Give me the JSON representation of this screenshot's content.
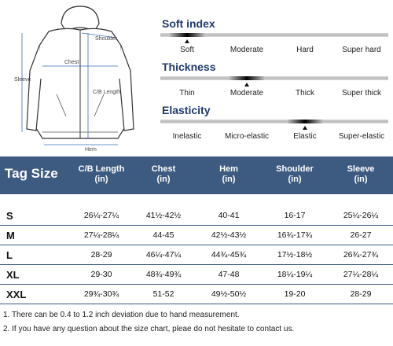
{
  "illustration": {
    "labels": {
      "shoulder": "Shoulder",
      "chest": "Chest",
      "sleeve": "Sleeve",
      "cb_length": "C/B Length",
      "hem": "Hem"
    }
  },
  "indices": [
    {
      "title": "Soft index",
      "options": [
        "Soft",
        "Moderate",
        "Hard",
        "Super hard"
      ],
      "selected": "Soft"
    },
    {
      "title": "Thickness",
      "options": [
        "Thin",
        "Moderate",
        "Thick",
        "Super thick"
      ],
      "selected": "Moderate"
    },
    {
      "title": "Elasticity",
      "options": [
        "Inelastic",
        "Micro-elastic",
        "Elastic",
        "Super-elastic"
      ],
      "selected": "Elastic"
    }
  ],
  "size_table": {
    "headers": {
      "tag_size": "Tag Size",
      "cb_length": [
        "C/B Length",
        "(in)"
      ],
      "chest": [
        "Chest",
        "(in)"
      ],
      "hem": [
        "Hem",
        "(in)"
      ],
      "shoulder": [
        "Shoulder",
        "(in)"
      ],
      "sleeve": [
        "Sleeve",
        "(in)"
      ]
    },
    "rows": [
      {
        "size": "S",
        "cb_length": "26¼-27¼",
        "chest": "41½-42½",
        "hem": "40-41",
        "shoulder": "16-17",
        "sleeve": "25¼-26¼"
      },
      {
        "size": "M",
        "cb_length": "27¼-28¼",
        "chest": "44-45",
        "hem": "42½-43½",
        "shoulder": "16¾-17¾",
        "sleeve": "26-27"
      },
      {
        "size": "L",
        "cb_length": "28-29",
        "chest": "46¼-47¼",
        "hem": "44¾-45¾",
        "shoulder": "17½-18½",
        "sleeve": "26¾-27¾"
      },
      {
        "size": "XL",
        "cb_length": "29-30",
        "chest": "48¾-49¾",
        "hem": "47-48",
        "shoulder": "18¼-19¼",
        "sleeve": "27¼-28¼"
      },
      {
        "size": "XXL",
        "cb_length": "29¾-30¾",
        "chest": "51-52",
        "hem": "49½-50½",
        "shoulder": "19-20",
        "sleeve": "28-29"
      }
    ]
  },
  "notes": [
    "1. There can be 0.4 to 1.2 inch deviation due to hand measurement.",
    "2. If you have any question about the size chart, pleae do not hesitate to contact us."
  ]
}
